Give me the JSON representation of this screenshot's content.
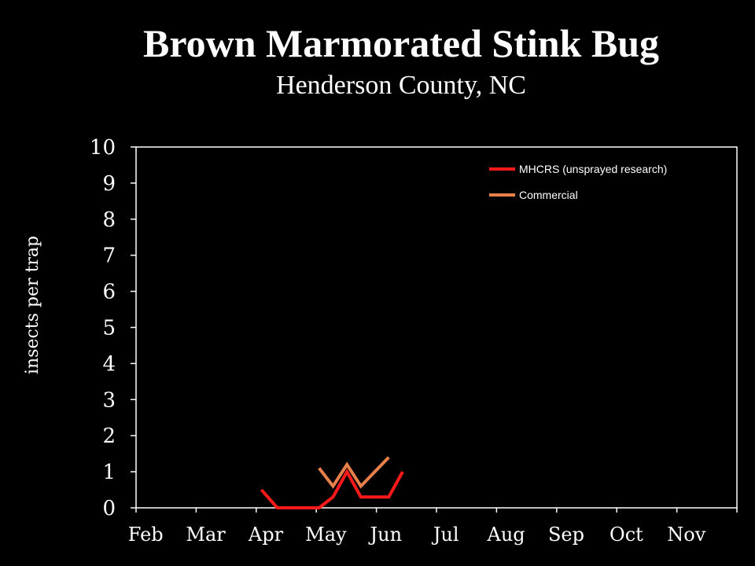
{
  "title": "Brown Marmorated Stink Bug",
  "subtitle": "Henderson County, NC",
  "colors": {
    "background": "#000000",
    "text": "#ffffff",
    "axis": "#ffffff",
    "series_mhcrs": "#ff1a1a",
    "series_commercial": "#e8804a"
  },
  "chart_data": {
    "type": "line",
    "title": "Brown Marmorated Stink Bug",
    "subtitle": "Henderson County, NC",
    "xlabel": "",
    "ylabel": "insects per trap",
    "x_categories": [
      "Feb",
      "Mar",
      "Apr",
      "May",
      "Jun",
      "Jul",
      "Aug",
      "Sep",
      "Oct",
      "Nov"
    ],
    "xlim": [
      "Feb 1",
      "Nov 30"
    ],
    "ylim": [
      0,
      10
    ],
    "yticks": [
      0,
      1,
      2,
      3,
      4,
      5,
      6,
      7,
      8,
      9,
      10
    ],
    "grid": false,
    "legend_position": "top-right",
    "series": [
      {
        "name": "MHCRS (unsprayed research)",
        "color": "#ff1a1a",
        "points": [
          {
            "x": "Apr 5",
            "y": 0.5
          },
          {
            "x": "Apr 13",
            "y": 0.0
          },
          {
            "x": "Apr 20",
            "y": 0.0
          },
          {
            "x": "Apr 27",
            "y": 0.0
          },
          {
            "x": "May 4",
            "y": 0.0
          },
          {
            "x": "May 11",
            "y": 0.3
          },
          {
            "x": "May 18",
            "y": 1.0
          },
          {
            "x": "May 25",
            "y": 0.3
          },
          {
            "x": "Jun 1",
            "y": 0.3
          },
          {
            "x": "Jun 8",
            "y": 0.3
          },
          {
            "x": "Jun 15",
            "y": 1.0
          }
        ]
      },
      {
        "name": "Commercial",
        "color": "#e8804a",
        "points": [
          {
            "x": "May 4",
            "y": 1.1
          },
          {
            "x": "May 11",
            "y": 0.6
          },
          {
            "x": "May 18",
            "y": 1.2
          },
          {
            "x": "May 25",
            "y": 0.6
          },
          {
            "x": "Jun 1",
            "y": 1.0
          },
          {
            "x": "Jun 8",
            "y": 1.4
          }
        ]
      }
    ]
  }
}
